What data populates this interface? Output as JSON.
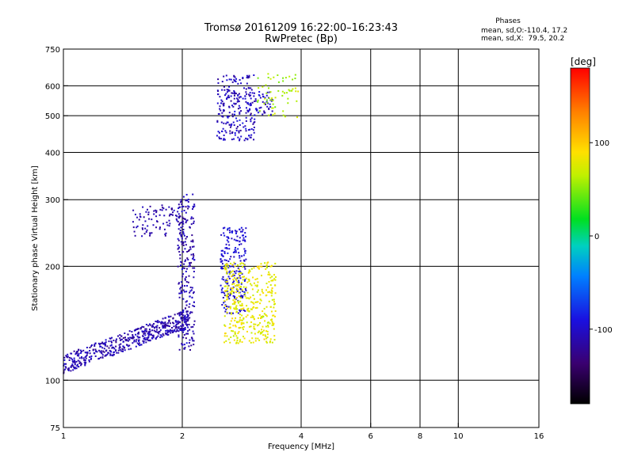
{
  "chart_data": {
    "type": "scatter",
    "title": "Tromsø 20161209 16:22:00–16:23:43",
    "subtitle": "RwPretec (Bp)",
    "xlabel": "Frequency [MHz]",
    "ylabel": "Stationary phase Virtual Height [km]",
    "xscale": "log",
    "yscale": "log",
    "xlim": [
      1,
      16
    ],
    "ylim": [
      75,
      750
    ],
    "xticks": [
      1,
      2,
      4,
      6,
      8,
      10,
      16
    ],
    "xtick_labels": [
      "1",
      "2",
      "4",
      "6",
      "8",
      "10",
      "16"
    ],
    "yticks": [
      75,
      100,
      200,
      300,
      400,
      500,
      600,
      750
    ],
    "ytick_labels": [
      "75",
      "100",
      "200",
      "300",
      "400",
      "500",
      "600",
      "750"
    ],
    "grid": true,
    "phase_info": {
      "heading": "Phases",
      "line1": "mean, sd,O:-110.4, 17.2",
      "line2": "mean, sd,X:  79.5, 20.2"
    },
    "colorbar": {
      "label": "[deg]",
      "range": [
        -180,
        180
      ],
      "ticks": [
        100,
        0,
        -100
      ],
      "tick_labels": [
        "100",
        "0",
        "-100"
      ]
    },
    "series": [
      {
        "mode": "O",
        "phase": -110,
        "x_range": [
          1.0,
          2.1
        ],
        "y_range": [
          104,
          152
        ],
        "trend": "rising",
        "points": 520
      },
      {
        "mode": "O",
        "phase": -110,
        "x_range": [
          1.95,
          2.15
        ],
        "y_range": [
          120,
          310
        ],
        "points": 230
      },
      {
        "mode": "O",
        "phase": -110,
        "x_range": [
          1.5,
          2.05
        ],
        "y_range": [
          240,
          290
        ],
        "points": 100
      },
      {
        "mode": "O",
        "phase": -95,
        "x_range": [
          2.5,
          2.9
        ],
        "y_range": [
          150,
          255
        ],
        "points": 220
      },
      {
        "mode": "X",
        "phase": 80,
        "x_range": [
          2.55,
          3.45
        ],
        "y_range": [
          125,
          205
        ],
        "points": 400
      },
      {
        "mode": "O",
        "phase": -105,
        "x_range": [
          2.45,
          3.05
        ],
        "y_range": [
          430,
          640
        ],
        "points": 220
      },
      {
        "mode": "O",
        "phase": -100,
        "x_range": [
          2.9,
          3.4
        ],
        "y_range": [
          500,
          580
        ],
        "points": 60
      },
      {
        "mode": "X",
        "phase": 60,
        "x_range": [
          3.1,
          3.95
        ],
        "y_range": [
          495,
          645
        ],
        "points": 60
      }
    ]
  }
}
